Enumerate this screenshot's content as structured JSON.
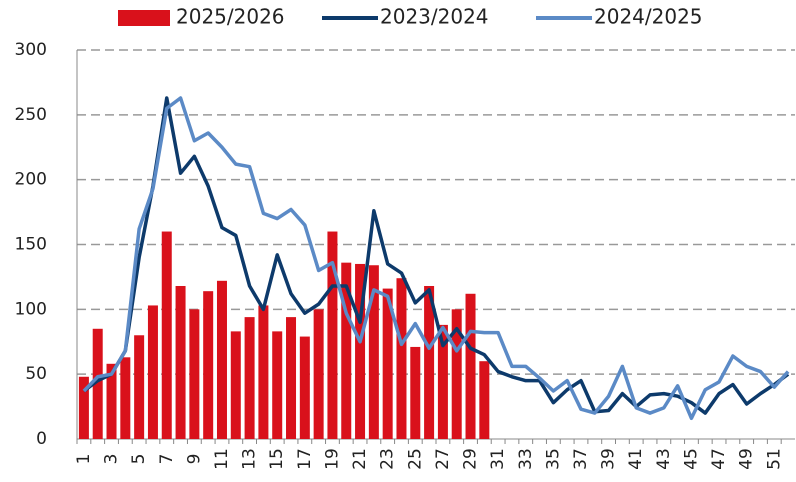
{
  "chart_data": {
    "type": "bar_line",
    "categories": [
      "1",
      null,
      "3",
      null,
      "5",
      null,
      "7",
      null,
      "9",
      null,
      "11",
      null,
      "13",
      null,
      "15",
      null,
      "17",
      null,
      "19",
      null,
      "21",
      null,
      "23",
      null,
      "25",
      null,
      "27",
      null,
      "29",
      null,
      "31",
      null,
      "33",
      null,
      "35",
      null,
      "37",
      null,
      "39",
      null,
      "41",
      null,
      "43",
      null,
      "45",
      null,
      "47",
      null,
      "49",
      null,
      "51",
      null
    ],
    "series": [
      {
        "name": "2025/2026",
        "type": "bar",
        "color": "#d9111b",
        "values": [
          48,
          85,
          58,
          63,
          80,
          103,
          160,
          118,
          100,
          114,
          122,
          83,
          94,
          103,
          83,
          94,
          79,
          100,
          160,
          136,
          135,
          134,
          116,
          124,
          71,
          118,
          88,
          100,
          112,
          60,
          null,
          null,
          null,
          null,
          null,
          null,
          null,
          null,
          null,
          null,
          null,
          null,
          null,
          null,
          null,
          null,
          null,
          null,
          null,
          null,
          null,
          null
        ]
      },
      {
        "name": "2023/2024",
        "type": "line",
        "color": "#0d3a6b",
        "values": [
          37,
          45,
          50,
          68,
          140,
          195,
          263,
          205,
          218,
          195,
          163,
          157,
          118,
          100,
          142,
          112,
          97,
          104,
          118,
          118,
          90,
          176,
          135,
          128,
          105,
          115,
          72,
          85,
          70,
          65,
          52,
          48,
          45,
          45,
          28,
          38,
          45,
          21,
          22,
          35,
          25,
          34,
          35,
          33,
          28,
          20,
          35,
          42,
          27,
          35,
          42,
          50
        ]
      },
      {
        "name": "2024/2025",
        "type": "line",
        "color": "#5b8ac6",
        "values": [
          37,
          48,
          50,
          68,
          162,
          193,
          255,
          263,
          230,
          236,
          225,
          212,
          210,
          174,
          170,
          177,
          165,
          130,
          136,
          97,
          75,
          115,
          110,
          73,
          89,
          70,
          86,
          68,
          83,
          82,
          82,
          56,
          56,
          47,
          37,
          45,
          23,
          20,
          33,
          56,
          24,
          20,
          24,
          41,
          16,
          38,
          44,
          64,
          56,
          52,
          40,
          52
        ]
      }
    ],
    "ylim": [
      0,
      300
    ],
    "yticks": [
      0,
      50,
      100,
      150,
      200,
      250,
      300
    ],
    "grid": true,
    "legend": "top"
  }
}
